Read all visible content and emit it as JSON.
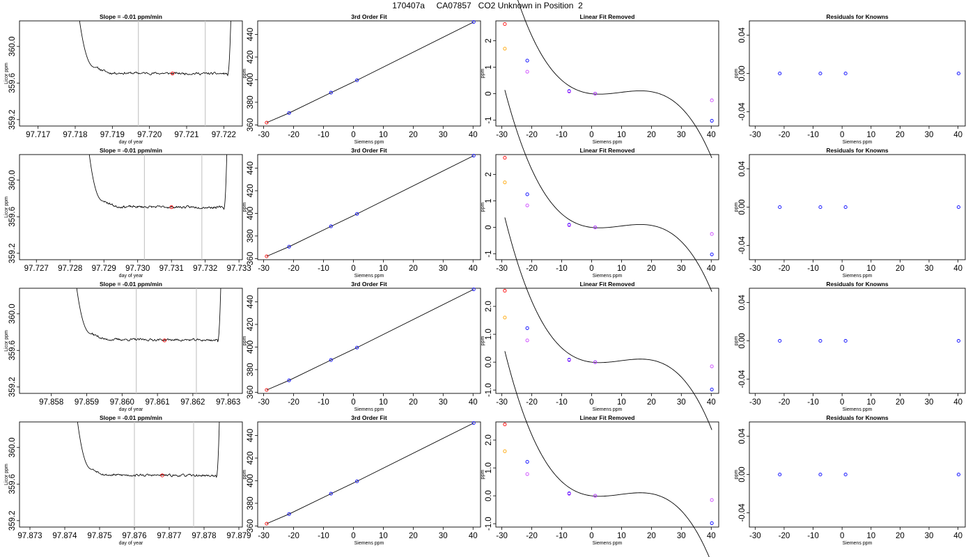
{
  "page_title": "170407a     CA07857   CO2 Unknown in Position  2",
  "panel_titles": {
    "slope": "Slope =  -0.01  ppm/min",
    "fit": "3rd Order Fit",
    "linear": "Linear Fit Removed",
    "residuals": "Residuals for Knowns"
  },
  "chart_data": [
    {
      "type": "line",
      "row": 1,
      "panel": "slope",
      "title": "Slope =  -0.01  ppm/min",
      "xlabel": "day of year",
      "ylabel": "Licor ppm",
      "xlim": [
        97.7165,
        97.7225
      ],
      "ylim": [
        359.13,
        360.28
      ],
      "xticks": [
        97.717,
        97.718,
        97.719,
        97.72,
        97.721,
        97.722
      ],
      "yticks": [
        359.2,
        359.6,
        360.0
      ],
      "x_start": 97.7181,
      "x_end": 97.7222,
      "plateau": 359.71,
      "spike_top": 360.28,
      "vlines": [
        97.7197,
        97.7215
      ],
      "marker": {
        "x": 97.72062,
        "y": 359.705
      },
      "seed": 11
    },
    {
      "type": "line",
      "row": 2,
      "panel": "slope",
      "title": "Slope =  -0.01  ppm/min",
      "xlabel": "day of year",
      "ylabel": "Licor ppm",
      "xlim": [
        97.7265,
        97.7331
      ],
      "ylim": [
        359.13,
        360.28
      ],
      "xticks": [
        97.727,
        97.728,
        97.729,
        97.73,
        97.731,
        97.732,
        97.733
      ],
      "yticks": [
        359.2,
        359.6,
        360.0
      ],
      "x_start": 97.72855,
      "x_end": 97.73265,
      "plateau": 359.71,
      "spike_top": 360.28,
      "vlines": [
        97.7302,
        97.7319
      ],
      "marker": {
        "x": 97.731,
        "y": 359.705
      },
      "seed": 23
    },
    {
      "type": "line",
      "row": 3,
      "panel": "slope",
      "title": "Slope =  -0.01  ppm/min",
      "xlabel": "day of year",
      "ylabel": "Licor ppm",
      "xlim": [
        97.8571,
        97.8634
      ],
      "ylim": [
        359.13,
        360.28
      ],
      "xticks": [
        97.858,
        97.859,
        97.86,
        97.861,
        97.862,
        97.863
      ],
      "yticks": [
        359.2,
        359.6,
        360.0
      ],
      "x_start": 97.8587,
      "x_end": 97.8628,
      "plateau": 359.72,
      "spike_top": 360.28,
      "vlines": [
        97.8604,
        97.8621
      ],
      "marker": {
        "x": 97.8612,
        "y": 359.71
      },
      "seed": 37
    },
    {
      "type": "line",
      "row": 4,
      "panel": "slope",
      "title": "Slope =  -0.01  ppm/min",
      "xlabel": "day of year",
      "ylabel": "Licor ppm",
      "xlim": [
        97.8727,
        97.8791
      ],
      "ylim": [
        359.13,
        360.28
      ],
      "xticks": [
        97.873,
        97.874,
        97.875,
        97.876,
        97.877,
        97.878,
        97.879
      ],
      "yticks": [
        359.2,
        359.6,
        360.0
      ],
      "x_start": 97.87435,
      "x_end": 97.87845,
      "plateau": 359.7,
      "spike_top": 360.28,
      "vlines": [
        97.876,
        97.8777
      ],
      "marker": {
        "x": 97.8768,
        "y": 359.695
      },
      "seed": 53
    },
    {
      "type": "scatter",
      "panel": "fit",
      "rows": [
        1,
        2,
        3,
        4
      ],
      "title": "3rd Order Fit",
      "xlabel": "Siemens ppm",
      "ylabel": "ppm",
      "xlim": [
        -32,
        42.5
      ],
      "ylim": [
        359,
        452
      ],
      "xticks": [
        -30,
        -20,
        -10,
        0,
        10,
        20,
        30,
        40
      ],
      "yticks": [
        360,
        380,
        400,
        420,
        440
      ],
      "points": [
        {
          "x": -29,
          "y": 362,
          "color": "#ff0000"
        },
        {
          "x": -21.5,
          "y": 370.5,
          "color": "#0000ff"
        },
        {
          "x": -7.5,
          "y": 388.5,
          "color": "#0000ff"
        },
        {
          "x": 1.2,
          "y": 399.5,
          "color": "#0000ff"
        },
        {
          "x": 40.2,
          "y": 451,
          "color": "#0000ff"
        }
      ]
    },
    {
      "type": "scatter",
      "panel": "linear",
      "rows": [
        1,
        2
      ],
      "title": "Linear Fit Removed",
      "xlabel": "Siemens ppm",
      "ylabel": "ppm",
      "xlim": [
        -32,
        42.5
      ],
      "ylim": [
        -1.22,
        2.75
      ],
      "xticks": [
        -30,
        -20,
        -10,
        0,
        10,
        20,
        30,
        40
      ],
      "yticks": [
        -1,
        0,
        1,
        2
      ],
      "curve": {
        "type": "cubic",
        "coefficients": [
          0,
          -0.0129,
          0.00283,
          -9.98e-05
        ],
        "range": [
          -29,
          40.2
        ]
      },
      "points": [
        {
          "x": -29,
          "y": 2.63,
          "color": "#ff0000"
        },
        {
          "x": -29,
          "y": 1.7,
          "color": "#ffa500"
        },
        {
          "x": -21.5,
          "y": 1.25,
          "color": "#0000ff"
        },
        {
          "x": -21.5,
          "y": 0.83,
          "color": "#cc44ff"
        },
        {
          "x": -7.5,
          "y": 0.1,
          "color": "#0000ff"
        },
        {
          "x": -7.5,
          "y": 0.08,
          "color": "#cc44ff"
        },
        {
          "x": 1.2,
          "y": 0.0,
          "color": "#0000ff"
        },
        {
          "x": 1.2,
          "y": 0.0,
          "color": "#cc44ff"
        },
        {
          "x": 40.2,
          "y": -1.02,
          "color": "#0000ff"
        },
        {
          "x": 40.2,
          "y": -0.25,
          "color": "#cc44ff"
        }
      ]
    },
    {
      "type": "scatter",
      "panel": "linear",
      "rows": [
        3,
        4
      ],
      "title": "Linear Fit Removed",
      "xlabel": "Siemens ppm",
      "ylabel": "ppm",
      "xlim": [
        -32,
        42.5
      ],
      "ylim": [
        -1.12,
        2.65
      ],
      "xticks": [
        -30,
        -20,
        -10,
        0,
        10,
        20,
        30,
        40
      ],
      "yticks": [
        -1.0,
        0.0,
        1.0,
        2.0
      ],
      "ytick_labels": [
        "-1.0",
        "0.0",
        "1.0",
        "2.0"
      ],
      "curve": {
        "type": "cubic",
        "coefficients": [
          0,
          -0.0129,
          0.00283,
          -9.98e-05
        ],
        "range": [
          -29,
          40.2
        ]
      },
      "points": [
        {
          "x": -29,
          "y": 2.56,
          "color": "#ff0000"
        },
        {
          "x": -29,
          "y": 1.6,
          "color": "#ffa500"
        },
        {
          "x": -21.5,
          "y": 1.22,
          "color": "#0000ff"
        },
        {
          "x": -21.5,
          "y": 0.78,
          "color": "#cc44ff"
        },
        {
          "x": -7.5,
          "y": 0.09,
          "color": "#0000ff"
        },
        {
          "x": -7.5,
          "y": 0.07,
          "color": "#cc44ff"
        },
        {
          "x": 1.2,
          "y": 0.0,
          "color": "#0000ff"
        },
        {
          "x": 1.2,
          "y": 0.0,
          "color": "#cc44ff"
        },
        {
          "x": 40.2,
          "y": -0.98,
          "color": "#0000ff"
        },
        {
          "x": 40.2,
          "y": -0.15,
          "color": "#cc44ff"
        }
      ]
    },
    {
      "type": "scatter",
      "panel": "residuals",
      "rows": [
        1,
        2,
        3,
        4
      ],
      "title": "Residuals for Knowns",
      "xlabel": "Siemens ppm",
      "ylabel": "ppm",
      "xlim": [
        -32,
        42.5
      ],
      "ylim": [
        -0.055,
        0.055
      ],
      "xticks": [
        -30,
        -20,
        -10,
        0,
        10,
        20,
        30,
        40
      ],
      "yticks": [
        -0.04,
        0.0,
        0.04
      ],
      "ytick_labels": [
        "-0.04",
        "0.00",
        "0.04"
      ],
      "points": [
        {
          "x": -21.5,
          "y": 0.0,
          "color": "#0000ff"
        },
        {
          "x": -7.5,
          "y": 0.0,
          "color": "#0000ff"
        },
        {
          "x": 1.2,
          "y": 0.0,
          "color": "#0000ff"
        },
        {
          "x": 40.2,
          "y": 0.0,
          "color": "#0000ff"
        }
      ]
    }
  ]
}
